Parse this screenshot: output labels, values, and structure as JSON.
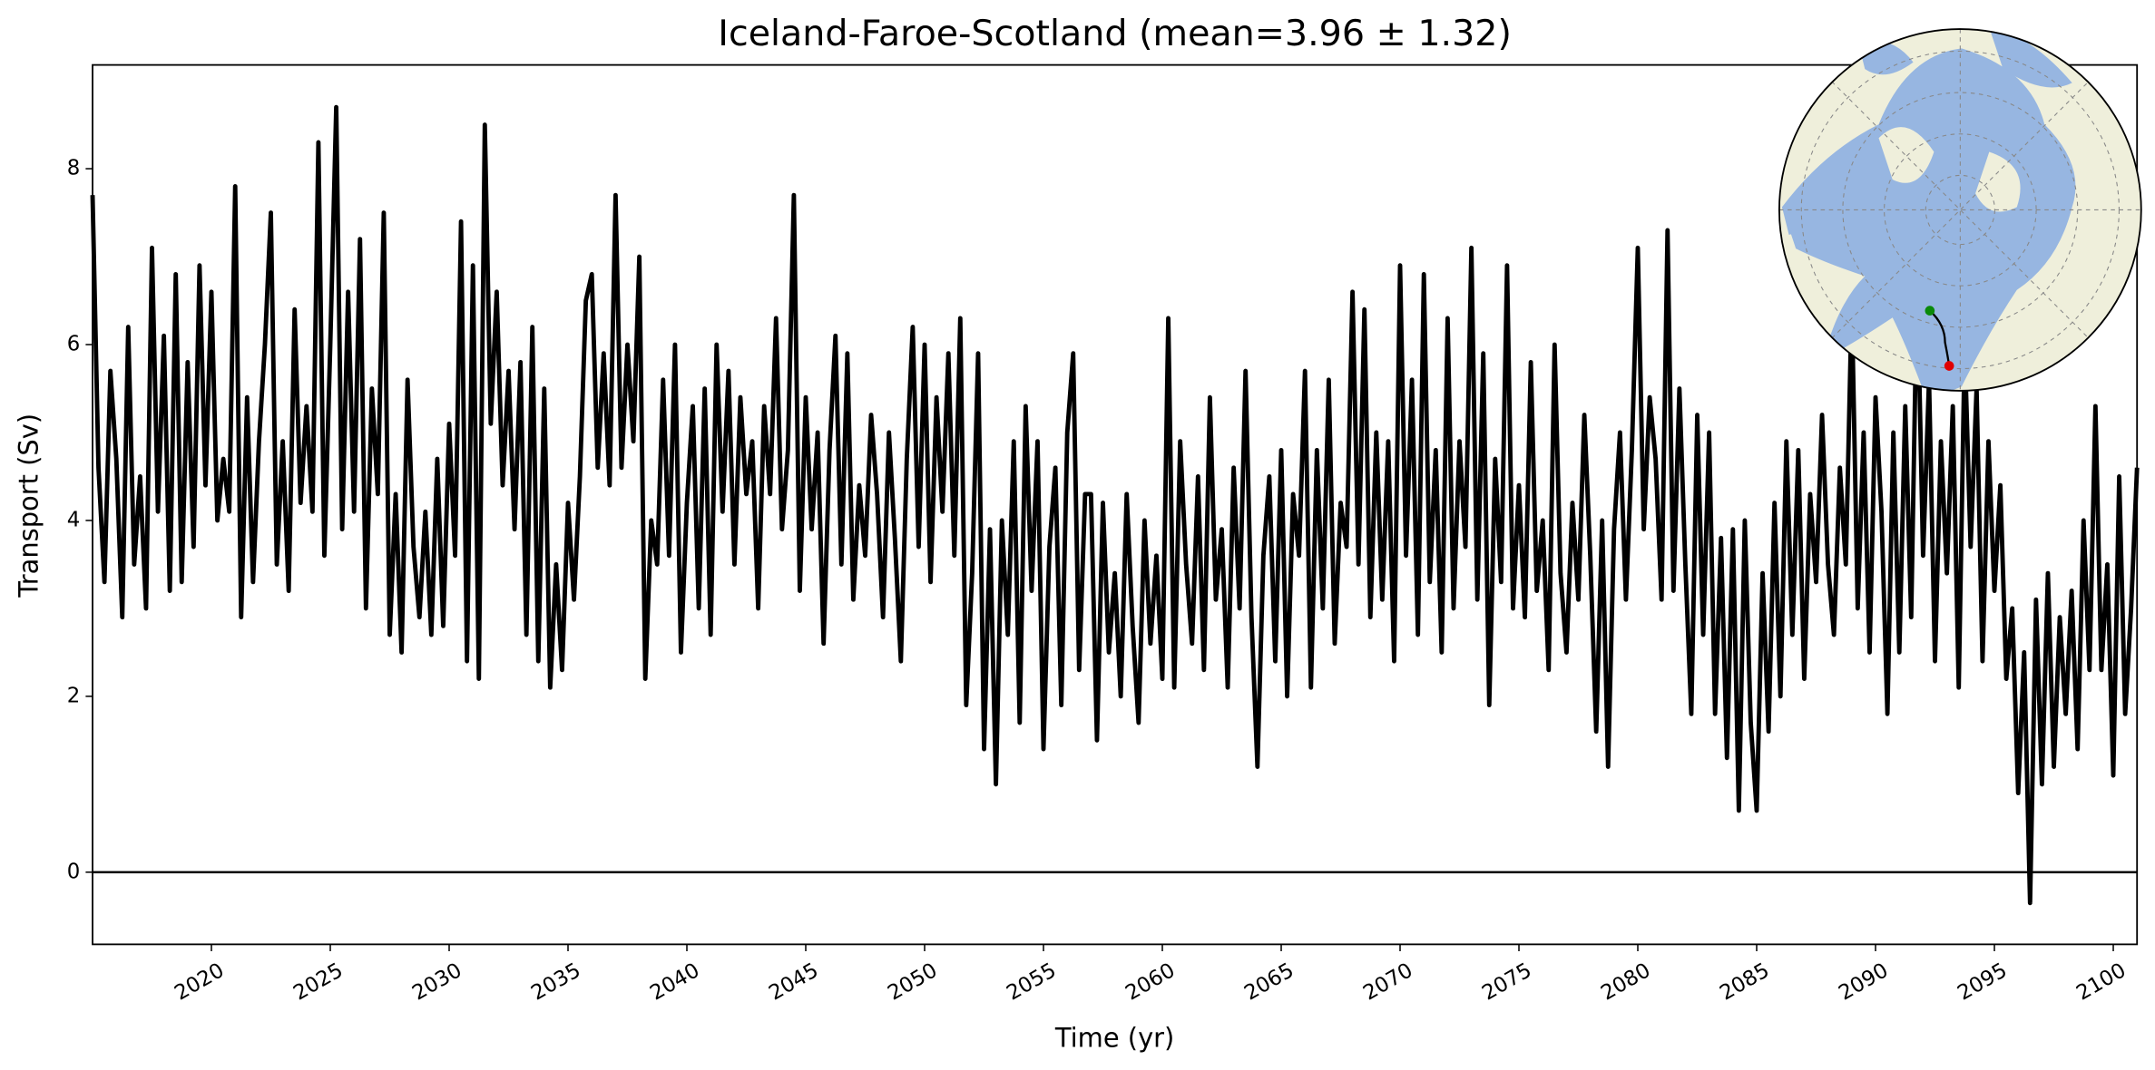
{
  "chart_data": {
    "type": "line",
    "title": "Iceland-Faroe-Scotland (mean=3.96 ± 1.32)",
    "x_label": "Time (yr)",
    "y_label": "Transport (Sv)",
    "xlim": [
      2015,
      2101
    ],
    "ylim": [
      -0.82,
      9.18
    ],
    "xticks": [
      2020,
      2025,
      2030,
      2035,
      2040,
      2045,
      2050,
      2055,
      2060,
      2065,
      2070,
      2075,
      2080,
      2085,
      2090,
      2095,
      2100
    ],
    "yticks": [
      0,
      2,
      4,
      6,
      8
    ],
    "hline": 0,
    "x": [
      2015,
      2015.25,
      2015.5,
      2015.75,
      2016,
      2016.25,
      2016.5,
      2016.75,
      2017,
      2017.25,
      2017.5,
      2017.75,
      2018,
      2018.25,
      2018.5,
      2018.75,
      2019,
      2019.25,
      2019.5,
      2019.75,
      2020,
      2020.25,
      2020.5,
      2020.75,
      2021,
      2021.25,
      2021.5,
      2021.75,
      2022,
      2022.25,
      2022.5,
      2022.75,
      2023,
      2023.25,
      2023.5,
      2023.75,
      2024,
      2024.25,
      2024.5,
      2024.75,
      2025,
      2025.25,
      2025.5,
      2025.75,
      2026,
      2026.25,
      2026.5,
      2026.75,
      2027,
      2027.25,
      2027.5,
      2027.75,
      2028,
      2028.25,
      2028.5,
      2028.75,
      2029,
      2029.25,
      2029.5,
      2029.75,
      2030,
      2030.25,
      2030.5,
      2030.75,
      2031,
      2031.25,
      2031.5,
      2031.75,
      2032,
      2032.25,
      2032.5,
      2032.75,
      2033,
      2033.25,
      2033.5,
      2033.75,
      2034,
      2034.25,
      2034.5,
      2034.75,
      2035,
      2035.25,
      2035.5,
      2035.75,
      2036,
      2036.25,
      2036.5,
      2036.75,
      2037,
      2037.25,
      2037.5,
      2037.75,
      2038,
      2038.25,
      2038.5,
      2038.75,
      2039,
      2039.25,
      2039.5,
      2039.75,
      2040,
      2040.25,
      2040.5,
      2040.75,
      2041,
      2041.25,
      2041.5,
      2041.75,
      2042,
      2042.25,
      2042.5,
      2042.75,
      2043,
      2043.25,
      2043.5,
      2043.75,
      2044,
      2044.25,
      2044.5,
      2044.75,
      2045,
      2045.25,
      2045.5,
      2045.75,
      2046,
      2046.25,
      2046.5,
      2046.75,
      2047,
      2047.25,
      2047.5,
      2047.75,
      2048,
      2048.25,
      2048.5,
      2048.75,
      2049,
      2049.25,
      2049.5,
      2049.75,
      2050,
      2050.25,
      2050.5,
      2050.75,
      2051,
      2051.25,
      2051.5,
      2051.75,
      2052,
      2052.25,
      2052.5,
      2052.75,
      2053,
      2053.25,
      2053.5,
      2053.75,
      2054,
      2054.25,
      2054.5,
      2054.75,
      2055,
      2055.25,
      2055.5,
      2055.75,
      2056,
      2056.25,
      2056.5,
      2056.75,
      2057,
      2057.25,
      2057.5,
      2057.75,
      2058,
      2058.25,
      2058.5,
      2058.75,
      2059,
      2059.25,
      2059.5,
      2059.75,
      2060,
      2060.25,
      2060.5,
      2060.75,
      2061,
      2061.25,
      2061.5,
      2061.75,
      2062,
      2062.25,
      2062.5,
      2062.75,
      2063,
      2063.25,
      2063.5,
      2063.75,
      2064,
      2064.25,
      2064.5,
      2064.75,
      2065,
      2065.25,
      2065.5,
      2065.75,
      2066,
      2066.25,
      2066.5,
      2066.75,
      2067,
      2067.25,
      2067.5,
      2067.75,
      2068,
      2068.25,
      2068.5,
      2068.75,
      2069,
      2069.25,
      2069.5,
      2069.75,
      2070,
      2070.25,
      2070.5,
      2070.75,
      2071,
      2071.25,
      2071.5,
      2071.75,
      2072,
      2072.25,
      2072.5,
      2072.75,
      2073,
      2073.25,
      2073.5,
      2073.75,
      2074,
      2074.25,
      2074.5,
      2074.75,
      2075,
      2075.25,
      2075.5,
      2075.75,
      2076,
      2076.25,
      2076.5,
      2076.75,
      2077,
      2077.25,
      2077.5,
      2077.75,
      2078,
      2078.25,
      2078.5,
      2078.75,
      2079,
      2079.25,
      2079.5,
      2079.75,
      2080,
      2080.25,
      2080.5,
      2080.75,
      2081,
      2081.25,
      2081.5,
      2081.75,
      2082,
      2082.25,
      2082.5,
      2082.75,
      2083,
      2083.25,
      2083.5,
      2083.75,
      2084,
      2084.25,
      2084.5,
      2084.75,
      2085,
      2085.25,
      2085.5,
      2085.75,
      2086,
      2086.25,
      2086.5,
      2086.75,
      2087,
      2087.25,
      2087.5,
      2087.75,
      2088,
      2088.25,
      2088.5,
      2088.75,
      2089,
      2089.25,
      2089.5,
      2089.75,
      2090,
      2090.25,
      2090.5,
      2090.75,
      2091,
      2091.25,
      2091.5,
      2091.75,
      2092,
      2092.25,
      2092.5,
      2092.75,
      2093,
      2093.25,
      2093.5,
      2093.75,
      2094,
      2094.25,
      2094.5,
      2094.75,
      2095,
      2095.25,
      2095.5,
      2095.75,
      2096,
      2096.25,
      2096.5,
      2096.75,
      2097,
      2097.25,
      2097.5,
      2097.75,
      2098,
      2098.25,
      2098.5,
      2098.75,
      2099,
      2099.25,
      2099.5,
      2099.75,
      2100,
      2100.25,
      2100.5,
      2100.75,
      2101
    ],
    "series": [
      {
        "color": "#000000",
        "values": [
          7.7,
          4.6,
          3.3,
          5.7,
          4.7,
          2.9,
          6.2,
          3.5,
          4.5,
          3.0,
          7.1,
          4.1,
          6.1,
          3.2,
          6.8,
          3.3,
          5.8,
          3.7,
          6.9,
          4.4,
          6.6,
          4.0,
          4.7,
          4.1,
          7.8,
          2.9,
          5.4,
          3.3,
          4.9,
          6.0,
          7.5,
          3.5,
          4.9,
          3.2,
          6.4,
          4.2,
          5.3,
          4.1,
          8.3,
          3.6,
          6.0,
          8.7,
          3.9,
          6.6,
          4.1,
          7.2,
          3.0,
          5.5,
          4.3,
          7.5,
          2.7,
          4.3,
          2.5,
          5.6,
          3.7,
          2.9,
          4.1,
          2.7,
          4.7,
          2.8,
          5.1,
          3.6,
          7.4,
          2.4,
          6.9,
          2.2,
          8.5,
          5.1,
          6.6,
          4.4,
          5.7,
          3.9,
          5.8,
          2.7,
          6.2,
          2.4,
          5.5,
          2.1,
          3.5,
          2.3,
          4.2,
          3.1,
          4.5,
          6.5,
          6.8,
          4.6,
          5.9,
          4.4,
          7.7,
          4.6,
          6.0,
          4.9,
          7.0,
          2.2,
          4.0,
          3.5,
          5.6,
          3.6,
          6.0,
          2.5,
          4.2,
          5.3,
          3.0,
          5.5,
          2.7,
          6.0,
          4.1,
          5.7,
          3.5,
          5.4,
          4.3,
          4.9,
          3.0,
          5.3,
          4.3,
          6.3,
          3.9,
          4.8,
          7.7,
          3.2,
          5.4,
          3.9,
          5.0,
          2.6,
          4.8,
          6.1,
          3.5,
          5.9,
          3.1,
          4.4,
          3.6,
          5.2,
          4.3,
          2.9,
          5.0,
          3.8,
          2.4,
          4.7,
          6.2,
          3.7,
          6.0,
          3.3,
          5.4,
          4.1,
          5.9,
          3.6,
          6.3,
          1.9,
          3.4,
          5.9,
          1.4,
          3.9,
          1.0,
          4.0,
          2.7,
          4.9,
          1.7,
          5.3,
          3.2,
          4.9,
          1.4,
          3.7,
          4.6,
          1.9,
          5.0,
          5.9,
          2.3,
          4.3,
          4.3,
          1.5,
          4.2,
          2.5,
          3.4,
          2.0,
          4.3,
          2.8,
          1.7,
          4.0,
          2.6,
          3.6,
          2.2,
          6.3,
          2.1,
          4.9,
          3.5,
          2.6,
          4.5,
          2.3,
          5.4,
          3.1,
          3.9,
          2.1,
          4.6,
          3.0,
          5.7,
          2.9,
          1.2,
          3.6,
          4.5,
          2.4,
          4.8,
          2.0,
          4.3,
          3.6,
          5.7,
          2.1,
          4.8,
          3.0,
          5.6,
          2.6,
          4.2,
          3.7,
          6.6,
          3.5,
          6.4,
          2.9,
          5.0,
          3.1,
          4.9,
          2.4,
          6.9,
          3.6,
          5.6,
          2.7,
          6.8,
          3.3,
          4.8,
          2.5,
          6.3,
          3.0,
          4.9,
          3.7,
          7.1,
          3.1,
          5.9,
          1.9,
          4.7,
          3.3,
          6.9,
          3.0,
          4.4,
          2.9,
          5.8,
          3.2,
          4.0,
          2.3,
          6.0,
          3.4,
          2.5,
          4.2,
          3.1,
          5.2,
          3.6,
          1.6,
          4.0,
          1.2,
          3.9,
          5.0,
          3.1,
          4.8,
          7.1,
          3.9,
          5.4,
          4.7,
          3.1,
          7.3,
          3.2,
          5.5,
          3.5,
          1.8,
          5.2,
          2.7,
          5.0,
          1.8,
          3.8,
          1.3,
          3.9,
          0.7,
          4.0,
          1.7,
          0.7,
          3.4,
          1.6,
          4.2,
          2.0,
          4.9,
          2.7,
          4.8,
          2.2,
          4.3,
          3.3,
          5.2,
          3.5,
          2.7,
          4.6,
          3.5,
          6.5,
          3.0,
          5.0,
          2.5,
          5.4,
          4.1,
          1.8,
          5.0,
          2.5,
          5.3,
          2.9,
          6.8,
          3.6,
          5.6,
          2.4,
          4.9,
          3.4,
          5.3,
          2.1,
          6.0,
          3.7,
          5.5,
          2.4,
          4.9,
          3.2,
          4.4,
          2.2,
          3.0,
          0.9,
          2.5,
          -0.35,
          3.1,
          1.0,
          3.4,
          1.2,
          2.9,
          1.8,
          3.2,
          1.4,
          4.0,
          2.3,
          5.3,
          2.3,
          3.5,
          1.1,
          4.5,
          1.8,
          3.0,
          4.6
        ]
      }
    ]
  }
}
